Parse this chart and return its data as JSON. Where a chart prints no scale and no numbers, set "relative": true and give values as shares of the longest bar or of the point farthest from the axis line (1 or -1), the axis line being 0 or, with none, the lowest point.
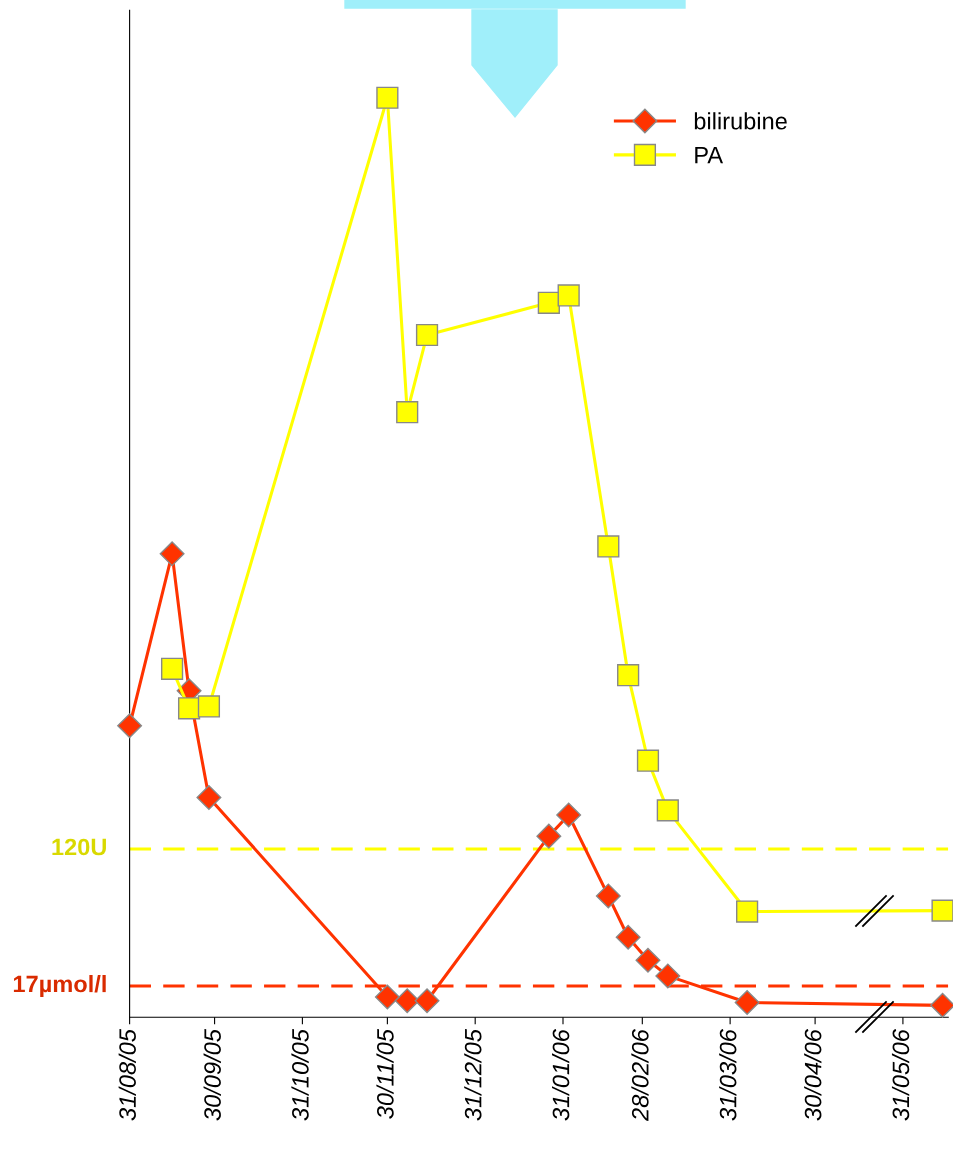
{
  "chart_data": {
    "type": "line",
    "relative": true,
    "legend": "top right",
    "grid": false,
    "line_style": "solid",
    "tick_labels": "x",
    "xlim": [
      "2005-08-31",
      "2006-06-16"
    ],
    "xticks": [
      {
        "value": "2005-08-31",
        "label": "31/08/05"
      },
      {
        "value": "2005-09-30",
        "label": "30/09/05"
      },
      {
        "value": "2005-10-31",
        "label": "31/10/05"
      },
      {
        "value": "2005-11-30",
        "label": "30/11/05"
      },
      {
        "value": "2005-12-31",
        "label": "31/12/05"
      },
      {
        "value": "2006-01-31",
        "label": "31/01/06"
      },
      {
        "value": "2006-02-28",
        "label": "28/02/06"
      },
      {
        "value": "2006-03-31",
        "label": "31/03/06"
      },
      {
        "value": "2006-04-30",
        "label": "30/04/06"
      },
      {
        "value": "2006-05-31",
        "label": "31/05/06"
      }
    ],
    "series": [
      {
        "name": "bilirubine",
        "color": "#ff3300",
        "marker": "diamond",
        "x": [
          "2005-08-31",
          "2005-09-15",
          "2005-09-21",
          "2005-09-28",
          "2005-11-30",
          "2005-12-07",
          "2005-12-14",
          "2006-01-26",
          "2006-02-02",
          "2006-02-16",
          "2006-02-23",
          "2006-03-02",
          "2006-03-09",
          "2006-04-06",
          "2006-06-14"
        ],
        "values": [
          0.317,
          0.504,
          0.355,
          0.239,
          0.022,
          0.018,
          0.018,
          0.197,
          0.22,
          0.132,
          0.087,
          0.062,
          0.045,
          0.016,
          0.013
        ]
      },
      {
        "name": "PA",
        "color": "#ffff00",
        "marker": "square",
        "x": [
          "2005-09-15",
          "2005-09-21",
          "2005-09-28",
          "2005-11-30",
          "2005-12-07",
          "2005-12-14",
          "2006-01-26",
          "2006-02-02",
          "2006-02-16",
          "2006-02-23",
          "2006-03-02",
          "2006-03-09",
          "2006-04-06",
          "2006-06-14"
        ],
        "values": [
          0.379,
          0.336,
          0.338,
          1.0,
          0.658,
          0.742,
          0.777,
          0.785,
          0.512,
          0.372,
          0.279,
          0.225,
          0.115,
          0.116
        ]
      }
    ],
    "ref_lines": [
      {
        "axis": "y",
        "value": 0.183,
        "label": "120U",
        "color": "#ffff00",
        "line_style": "dashed"
      },
      {
        "axis": "y",
        "value": 0.034,
        "label": "17µmol/l",
        "color": "#ff3300",
        "line_style": "dashed"
      }
    ]
  }
}
